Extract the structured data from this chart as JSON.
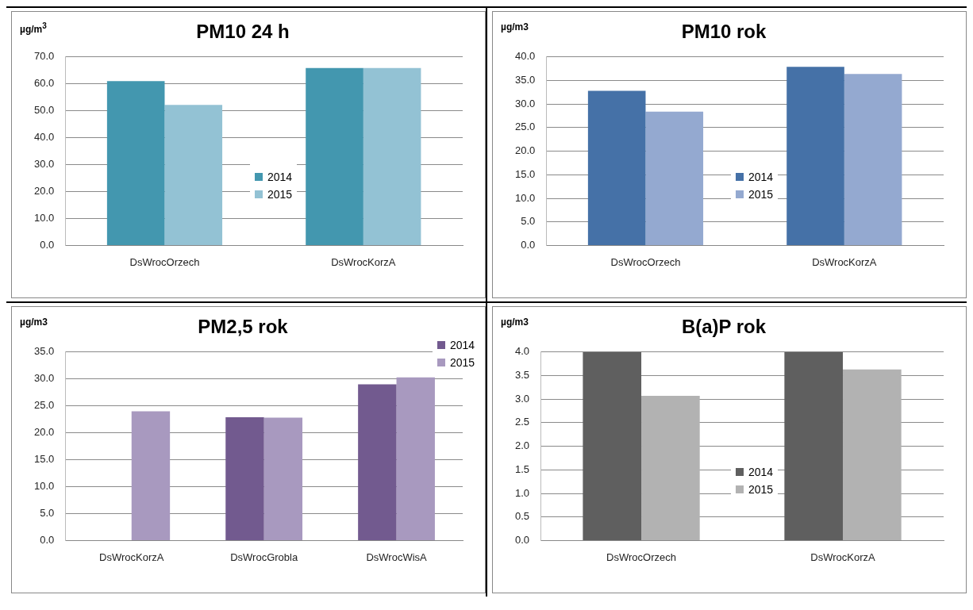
{
  "chart_data": [
    {
      "type": "bar",
      "title": "PM10 24 h",
      "ylabel": "µg/m$^{3}$",
      "categories": [
        "DsWrocOrzech",
        "DsWrocKorzA"
      ],
      "series": [
        {
          "name": "2014",
          "color": "#4397af",
          "values": [
            61.0,
            65.9
          ]
        },
        {
          "name": "2015",
          "color": "#93c2d4",
          "values": [
            52.2,
            65.9
          ]
        }
      ],
      "ylim": [
        0,
        70
      ],
      "yticks": [
        {
          "value": 0,
          "label": "0.0"
        },
        {
          "value": 10,
          "label": "10.0"
        },
        {
          "value": 20,
          "label": "20.0"
        },
        {
          "value": 30,
          "label": "30.0"
        },
        {
          "value": 40,
          "label": "40.0"
        },
        {
          "value": 50,
          "label": "50.0"
        },
        {
          "value": 60,
          "label": "60.0"
        },
        {
          "value": 70,
          "label": "70.0"
        }
      ],
      "grid": "y",
      "legend": "center"
    },
    {
      "type": "bar",
      "title": "PM10 rok",
      "ylabel": "µg/m3",
      "categories": [
        "DsWrocOrzech",
        "DsWrocKorzA"
      ],
      "series": [
        {
          "name": "2014",
          "color": "#4571a7",
          "values": [
            32.8,
            37.9
          ]
        },
        {
          "name": "2015",
          "color": "#94a9d0",
          "values": [
            28.4,
            36.4
          ]
        }
      ],
      "ylim": [
        0,
        40
      ],
      "yticks": [
        {
          "value": 0,
          "label": "0.0"
        },
        {
          "value": 5,
          "label": "5.0"
        },
        {
          "value": 10,
          "label": "10.0"
        },
        {
          "value": 15,
          "label": "15.0"
        },
        {
          "value": 20,
          "label": "20.0"
        },
        {
          "value": 25,
          "label": "25.0"
        },
        {
          "value": 30,
          "label": "30.0"
        },
        {
          "value": 35,
          "label": "35.0"
        },
        {
          "value": 40,
          "label": "40.0"
        }
      ],
      "grid": "y",
      "legend": "center"
    },
    {
      "type": "bar",
      "title": "PM2,5 rok",
      "ylabel": "µg/m3",
      "categories": [
        "DsWrocKorzA",
        "DsWrocGrobla",
        "DsWrocWisA"
      ],
      "series": [
        {
          "name": "2014",
          "color": "#725a8f",
          "values": [
            null,
            22.9,
            29.0
          ]
        },
        {
          "name": "2015",
          "color": "#a899bf",
          "values": [
            24.0,
            22.8,
            30.3
          ]
        }
      ],
      "ylim": [
        0,
        35
      ],
      "yticks": [
        {
          "value": 0,
          "label": "0.0"
        },
        {
          "value": 5,
          "label": "5.0"
        },
        {
          "value": 10,
          "label": "10.0"
        },
        {
          "value": 15,
          "label": "15.0"
        },
        {
          "value": 20,
          "label": "20.0"
        },
        {
          "value": 25,
          "label": "25.0"
        },
        {
          "value": 30,
          "label": "30.0"
        },
        {
          "value": 35,
          "label": "35.0"
        }
      ],
      "grid": "y",
      "legend": "top right"
    },
    {
      "type": "bar",
      "title": "B(a)P rok",
      "ylabel": "µg/m3",
      "categories": [
        "DsWrocOrzech",
        "DsWrocKorzA"
      ],
      "series": [
        {
          "name": "2014",
          "color": "#5f5f5f",
          "values": [
            4.0,
            4.0
          ]
        },
        {
          "name": "2015",
          "color": "#b2b2b2",
          "values": [
            3.07,
            3.63
          ]
        }
      ],
      "ylim": [
        0,
        4
      ],
      "yticks": [
        {
          "value": 0,
          "label": "0.0"
        },
        {
          "value": 0.5,
          "label": "0.5"
        },
        {
          "value": 1,
          "label": "1.0"
        },
        {
          "value": 1.5,
          "label": "1.5"
        },
        {
          "value": 2,
          "label": "2.0"
        },
        {
          "value": 2.5,
          "label": "2.5"
        },
        {
          "value": 3,
          "label": "3.0"
        },
        {
          "value": 3.5,
          "label": "3.5"
        },
        {
          "value": 4,
          "label": "4.0"
        }
      ],
      "grid": "y",
      "legend": "center"
    }
  ]
}
